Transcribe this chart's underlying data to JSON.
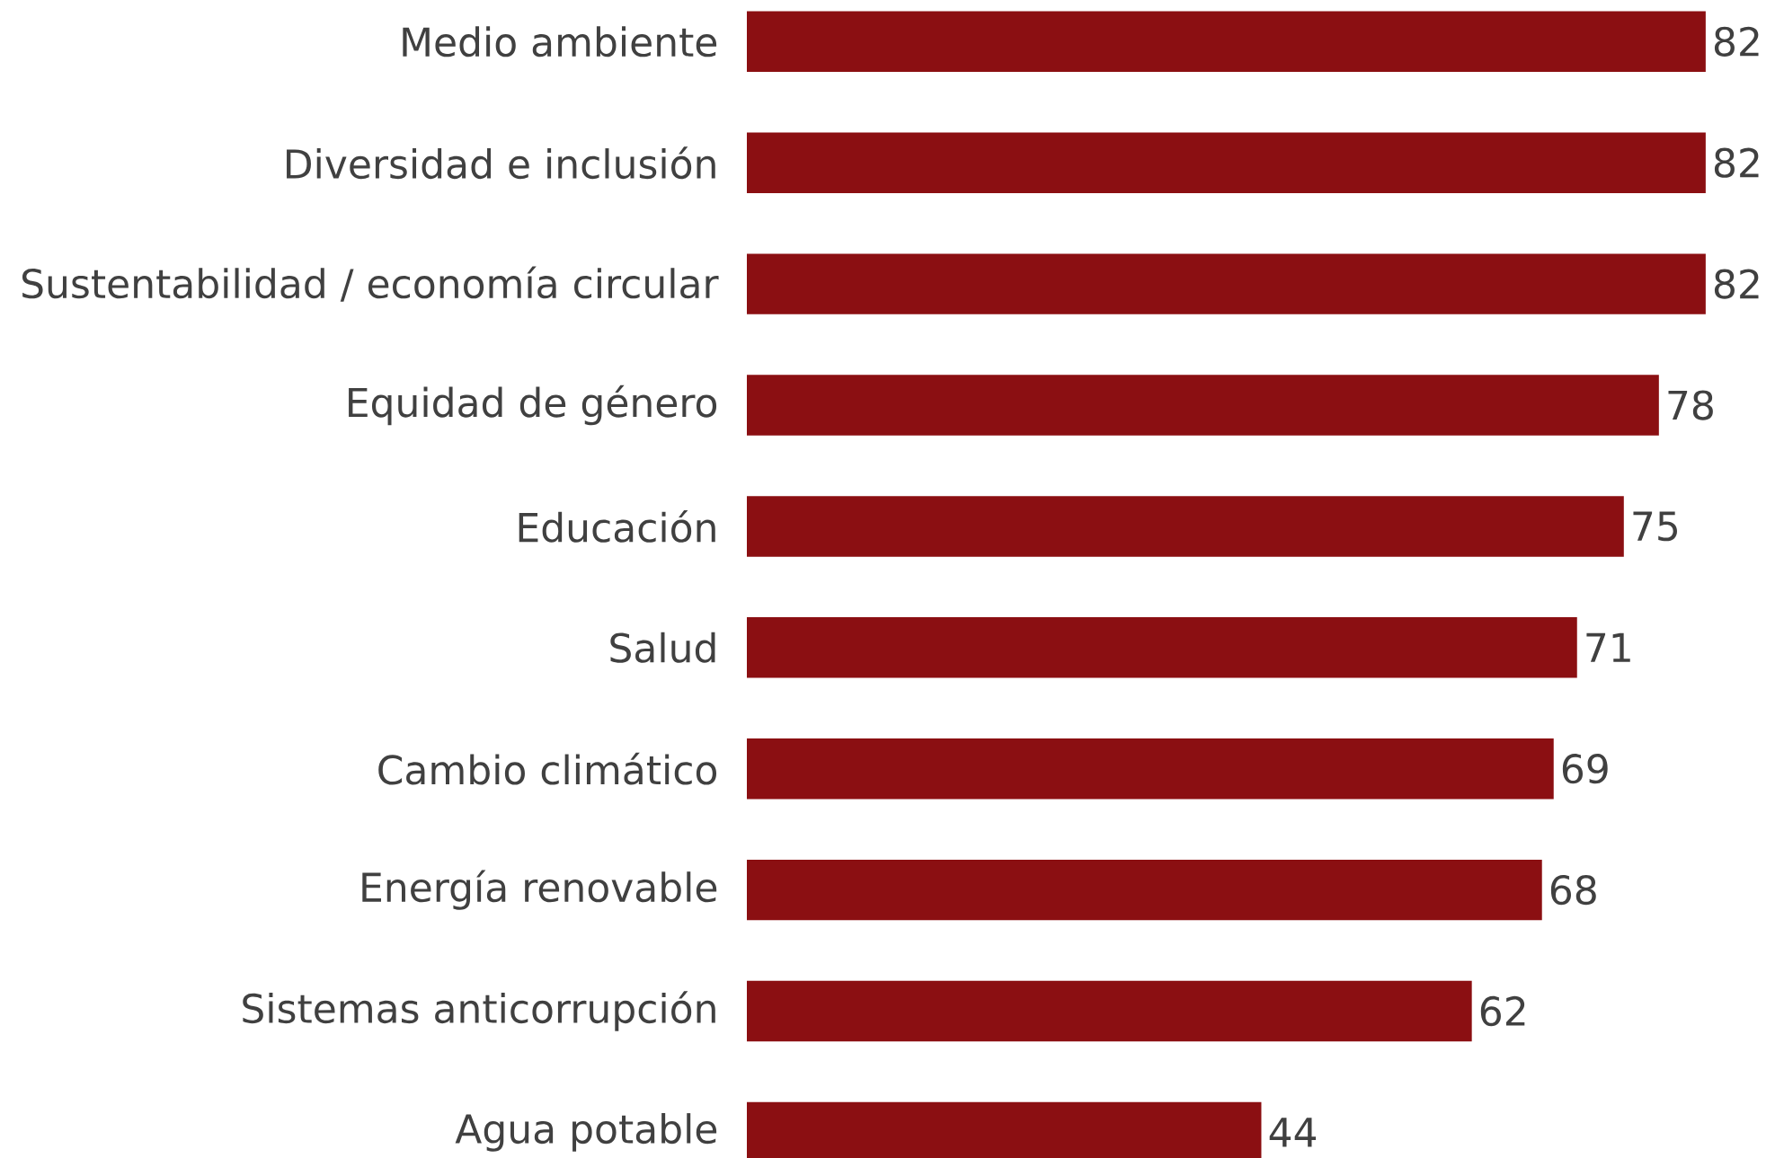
{
  "chart_data": {
    "type": "bar",
    "orientation": "horizontal",
    "categories": [
      "Medio ambiente",
      "Diversidad e inclusión",
      "Sustentabilidad / economía circular",
      "Equidad de género",
      "Educación",
      "Salud",
      "Cambio climático",
      "Energía renovable",
      "Sistemas anticorrupción",
      "Agua potable"
    ],
    "values": [
      82,
      82,
      82,
      78,
      75,
      71,
      69,
      68,
      62,
      44
    ],
    "color": "#8b0f12",
    "data_labels": true
  }
}
